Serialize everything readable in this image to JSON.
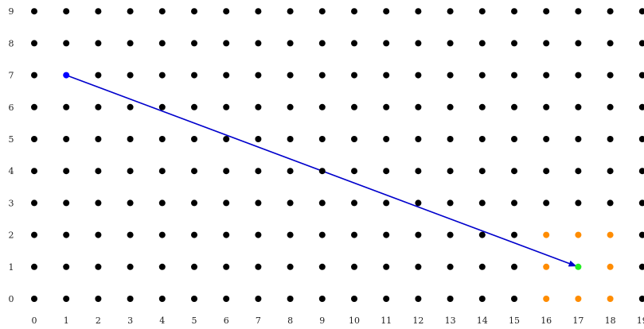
{
  "grid": {
    "x_labels": [
      "0",
      "1",
      "2",
      "3",
      "4",
      "5",
      "6",
      "7",
      "8",
      "9",
      "10",
      "11",
      "12",
      "13",
      "14",
      "15",
      "16",
      "17",
      "18",
      "19"
    ],
    "y_labels": [
      "0",
      "1",
      "2",
      "3",
      "4",
      "5",
      "6",
      "7",
      "8",
      "9"
    ]
  },
  "colors": {
    "default_point": "#000000",
    "highlight_point": "#ff8c00",
    "start_point": "#0000ff",
    "end_point": "#22ee22",
    "arrow": "#0000cc"
  },
  "highlighted_points": [
    [
      16,
      0
    ],
    [
      17,
      0
    ],
    [
      18,
      0
    ],
    [
      16,
      1
    ],
    [
      18,
      1
    ],
    [
      16,
      2
    ],
    [
      17,
      2
    ],
    [
      18,
      2
    ]
  ],
  "arrow": {
    "from": [
      1,
      7
    ],
    "to": [
      17,
      1
    ]
  }
}
